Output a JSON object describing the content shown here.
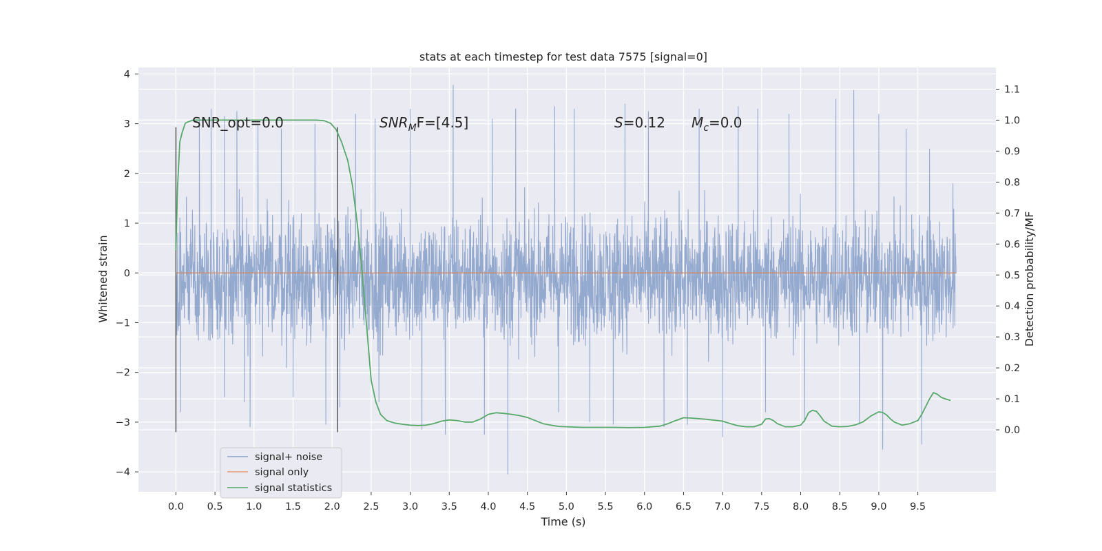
{
  "chart_data": {
    "type": "line",
    "title": "stats at each timestep for test data 7575 [signal=0]",
    "xlabel": "Time (s)",
    "ylabel": "Whitened strain",
    "y2label": "Detection probability/MF",
    "xlim": [
      -0.48,
      10.5
    ],
    "ylim": [
      -4.4,
      4.13
    ],
    "y2lim": [
      -0.2,
      1.17
    ],
    "xticks": [
      0.0,
      0.5,
      1.0,
      1.5,
      2.0,
      2.5,
      3.0,
      3.5,
      4.0,
      4.5,
      5.0,
      5.5,
      6.0,
      6.5,
      7.0,
      7.5,
      8.0,
      8.5,
      9.0,
      9.5
    ],
    "xtick_labels": [
      "0.0",
      "0.5",
      "1.0",
      "1.5",
      "2.0",
      "2.5",
      "3.0",
      "3.5",
      "4.0",
      "4.5",
      "5.0",
      "5.5",
      "6.0",
      "6.5",
      "7.0",
      "7.5",
      "8.0",
      "8.5",
      "9.0",
      "9.5"
    ],
    "yticks": [
      -4,
      -3,
      -2,
      -1,
      0,
      1,
      2,
      3,
      4
    ],
    "ytick_labels": [
      "−4",
      "−3",
      "−2",
      "−1",
      "0",
      "1",
      "2",
      "3",
      "4"
    ],
    "y2ticks": [
      0.0,
      0.1,
      0.2,
      0.3,
      0.4,
      0.5,
      0.6,
      0.7,
      0.8,
      0.9,
      1.0,
      1.1
    ],
    "y2tick_labels": [
      "0.0",
      "0.1",
      "0.2",
      "0.3",
      "0.4",
      "0.5",
      "0.6",
      "0.7",
      "0.8",
      "0.9",
      "1.0",
      "1.1"
    ],
    "grid": true,
    "legend_position": "lower-left",
    "colors": {
      "signal_noise": "#4c72b0",
      "signal_only": "#dd8452",
      "signal_statistics": "#55a868",
      "vline": "#555555",
      "background": "#eaeaf2",
      "grid": "#ffffff"
    },
    "series": [
      {
        "name": "signal+ noise",
        "axis": "left",
        "x_range": [
          0.0,
          9.99
        ],
        "envelope": {
          "typical_low": -1.4,
          "typical_high": 1.1,
          "max": 3.8,
          "min": -4.05
        },
        "peaks": [
          [
            0.0,
            2.4
          ],
          [
            0.0,
            -3.2
          ],
          [
            0.06,
            -2.8
          ],
          [
            0.3,
            3.1
          ],
          [
            0.45,
            3.3
          ],
          [
            0.62,
            3.15
          ],
          [
            0.62,
            -2.5
          ],
          [
            0.78,
            3.25
          ],
          [
            0.88,
            -2.6
          ],
          [
            0.95,
            -3.1
          ],
          [
            1.05,
            3.0
          ],
          [
            1.35,
            2.9
          ],
          [
            1.5,
            -2.5
          ],
          [
            1.78,
            3.0
          ],
          [
            1.92,
            -3.05
          ],
          [
            2.1,
            -2.7
          ],
          [
            2.3,
            3.2
          ],
          [
            2.55,
            3.1
          ],
          [
            2.6,
            -2.6
          ],
          [
            3.0,
            3.3
          ],
          [
            3.15,
            -3.15
          ],
          [
            3.45,
            -3.25
          ],
          [
            3.55,
            3.78
          ],
          [
            3.95,
            -3.25
          ],
          [
            4.05,
            3.1
          ],
          [
            4.25,
            -4.05
          ],
          [
            4.35,
            3.3
          ],
          [
            4.85,
            3.35
          ],
          [
            4.9,
            -2.8
          ],
          [
            5.1,
            3.3
          ],
          [
            5.3,
            -3.0
          ],
          [
            5.6,
            -3.05
          ],
          [
            5.75,
            3.4
          ],
          [
            6.05,
            3.25
          ],
          [
            6.25,
            -3.1
          ],
          [
            6.55,
            -3.05
          ],
          [
            6.7,
            3.3
          ],
          [
            7.0,
            -3.3
          ],
          [
            7.2,
            3.35
          ],
          [
            7.45,
            3.3
          ],
          [
            7.55,
            -2.8
          ],
          [
            7.85,
            3.2
          ],
          [
            8.05,
            -3.0
          ],
          [
            8.45,
            3.5
          ],
          [
            8.68,
            3.68
          ],
          [
            8.75,
            -3.05
          ],
          [
            9.0,
            3.2
          ],
          [
            9.05,
            -3.55
          ],
          [
            9.35,
            2.9
          ],
          [
            9.55,
            -3.45
          ],
          [
            9.65,
            2.5
          ],
          [
            9.95,
            1.8
          ]
        ]
      },
      {
        "name": "signal only",
        "axis": "left",
        "x": [
          0.0,
          9.99
        ],
        "values": [
          0.0,
          0.0
        ]
      },
      {
        "name": "signal statistics",
        "axis": "right",
        "x": [
          0.0,
          0.02,
          0.05,
          0.08,
          0.12,
          0.16,
          0.22,
          0.3,
          0.5,
          0.8,
          1.2,
          1.6,
          1.8,
          1.9,
          1.98,
          2.05,
          2.12,
          2.2,
          2.26,
          2.32,
          2.38,
          2.42,
          2.46,
          2.5,
          2.56,
          2.62,
          2.7,
          2.8,
          2.9,
          3.0,
          3.1,
          3.2,
          3.3,
          3.4,
          3.5,
          3.6,
          3.7,
          3.8,
          3.9,
          4.0,
          4.1,
          4.2,
          4.3,
          4.4,
          4.5,
          4.6,
          4.7,
          4.8,
          4.9,
          5.0,
          5.2,
          5.4,
          5.6,
          5.8,
          6.0,
          6.2,
          6.3,
          6.4,
          6.5,
          6.6,
          6.8,
          7.0,
          7.1,
          7.2,
          7.3,
          7.4,
          7.5,
          7.55,
          7.6,
          7.65,
          7.7,
          7.8,
          7.9,
          8.0,
          8.05,
          8.1,
          8.15,
          8.2,
          8.25,
          8.3,
          8.4,
          8.5,
          8.6,
          8.7,
          8.8,
          8.9,
          9.0,
          9.05,
          9.1,
          9.15,
          9.2,
          9.3,
          9.4,
          9.5,
          9.55,
          9.6,
          9.65,
          9.7,
          9.75,
          9.8,
          9.85,
          9.92
        ],
        "values": [
          0.58,
          0.78,
          0.93,
          0.96,
          0.99,
          0.995,
          1.0,
          1.0,
          1.0,
          1.0,
          1.0,
          1.0,
          1.0,
          0.998,
          0.99,
          0.97,
          0.93,
          0.87,
          0.79,
          0.67,
          0.52,
          0.4,
          0.28,
          0.16,
          0.09,
          0.05,
          0.03,
          0.022,
          0.018,
          0.015,
          0.014,
          0.015,
          0.02,
          0.028,
          0.032,
          0.03,
          0.025,
          0.025,
          0.035,
          0.05,
          0.055,
          0.053,
          0.05,
          0.046,
          0.04,
          0.03,
          0.02,
          0.015,
          0.011,
          0.01,
          0.008,
          0.008,
          0.008,
          0.007,
          0.008,
          0.012,
          0.02,
          0.03,
          0.039,
          0.038,
          0.034,
          0.028,
          0.02,
          0.013,
          0.01,
          0.01,
          0.018,
          0.035,
          0.036,
          0.03,
          0.02,
          0.01,
          0.01,
          0.015,
          0.03,
          0.055,
          0.063,
          0.06,
          0.045,
          0.028,
          0.012,
          0.01,
          0.011,
          0.016,
          0.026,
          0.045,
          0.058,
          0.056,
          0.048,
          0.035,
          0.025,
          0.015,
          0.02,
          0.03,
          0.05,
          0.075,
          0.1,
          0.12,
          0.115,
          0.105,
          0.1,
          0.095
        ]
      }
    ],
    "vlines": [
      0.0,
      2.07
    ],
    "annotations": {
      "snr_opt": "SNR_opt=0.0",
      "snr_mf_main": "SNR",
      "snr_mf_sub": "M",
      "snr_mf_rest": "F=[4.5]",
      "s_var": "S",
      "s_value": "=0.12",
      "mc_main": "M",
      "mc_sub": "c",
      "mc_value": "=0.0"
    }
  }
}
